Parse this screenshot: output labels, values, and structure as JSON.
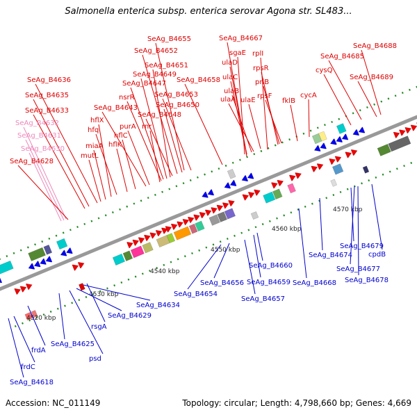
{
  "title": "Salmonella enterica subsp. enterica serovar Agona str. SL483...",
  "footer": {
    "accession": "Accession: NC_011149",
    "summary": "Topology: circular; Length: 4,798,660 bp; Genes: 4,669"
  },
  "colors": {
    "forward_label": "#dd0000",
    "reverse_label": "#0000cc",
    "rna_label": "#ee88bb",
    "backbone": "#999999"
  },
  "ticks": [
    "4520 kbp",
    "4530 kbp",
    "4540 kbp",
    "4550 kbp",
    "4560 kbp",
    "4570 kbp"
  ],
  "top_labels": [
    "SeAg_B4655",
    "SeAg_B4667",
    "SeAg_B4652",
    "sgaE",
    "rplI",
    "SeAg_B4688",
    "SeAg_B4685",
    "SeAg_B4651",
    "ulaD",
    "rpsR",
    "cysQ",
    "SeAg_B4649",
    "SeAg_B4647",
    "SeAg_B4658",
    "ulaC",
    "priB",
    "SeAg_B4689",
    "SeAg_B4636",
    "SeAg_B4653",
    "ulaB",
    "rpsF",
    "SeAg_B4635",
    "nsrR",
    "ulaA",
    "ulaE",
    "cycA",
    "fklB",
    "SeAg_B4650",
    "SeAg_B4643",
    "hflX",
    "SeAg_B4648",
    "SeAg_B4633",
    "SeAg_B4632",
    "hfq",
    "purA",
    "rnr",
    "SeAg_B4631",
    "hflC",
    "miaA",
    "hflK",
    "SeAg_B4630",
    "mutL",
    "SeAg_B4628"
  ],
  "bottom_labels": [
    "SeAg_B4679",
    "cpdB",
    "SeAg_B4674",
    "SeAg_B4677",
    "SeAg_B4660",
    "SeAg_B4668",
    "SeAg_B4678",
    "SeAg_B4656",
    "SeAg_B4659",
    "SeAg_B4654",
    "SeAg_B4657",
    "SeAg_B4634",
    "SeAg_B4629",
    "rsgA",
    "SeAg_B4625",
    "frdA",
    "psd",
    "frdC",
    "SeAg_B4618"
  ]
}
